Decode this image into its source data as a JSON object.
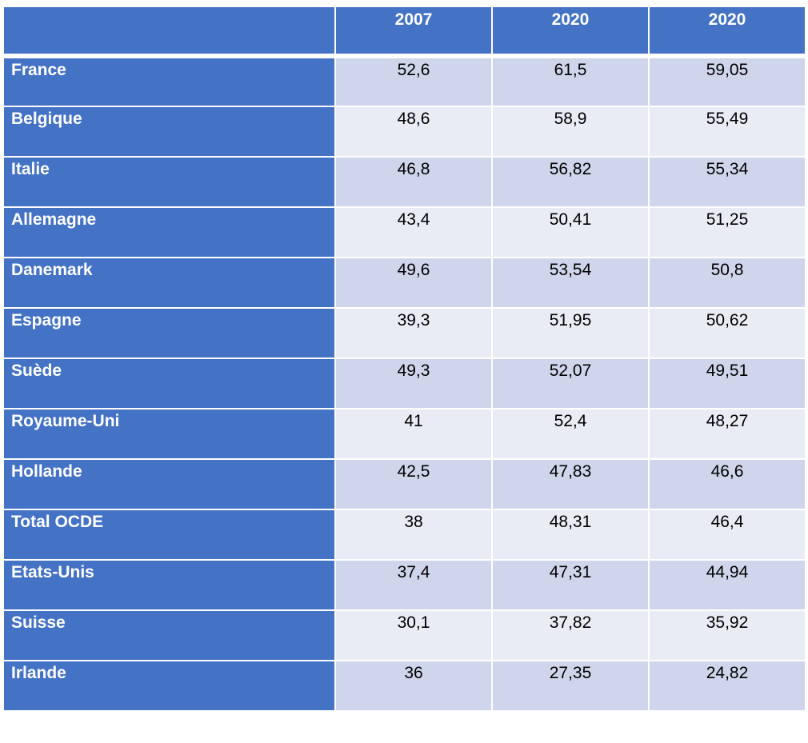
{
  "table": {
    "headers": [
      "",
      "2007",
      "2020",
      "2020"
    ],
    "rows": [
      {
        "label": "France",
        "values": [
          "52,6",
          "61,5",
          "59,05"
        ]
      },
      {
        "label": "Belgique",
        "values": [
          "48,6",
          "58,9",
          "55,49"
        ]
      },
      {
        "label": "Italie",
        "values": [
          "46,8",
          "56,82",
          "55,34"
        ]
      },
      {
        "label": "Allemagne",
        "values": [
          "43,4",
          "50,41",
          "51,25"
        ]
      },
      {
        "label": "Danemark",
        "values": [
          "49,6",
          "53,54",
          "50,8"
        ]
      },
      {
        "label": "Espagne",
        "values": [
          "39,3",
          "51,95",
          "50,62"
        ]
      },
      {
        "label": "Suède",
        "values": [
          "49,3",
          "52,07",
          "49,51"
        ]
      },
      {
        "label": "Royaume-Uni",
        "values": [
          "41",
          "52,4",
          "48,27"
        ]
      },
      {
        "label": "Hollande",
        "values": [
          "42,5",
          "47,83",
          "46,6"
        ]
      },
      {
        "label": "Total OCDE",
        "values": [
          "38",
          "48,31",
          "46,4"
        ]
      },
      {
        "label": "Etats-Unis",
        "values": [
          "37,4",
          "47,31",
          "44,94"
        ]
      },
      {
        "label": "Suisse",
        "values": [
          "30,1",
          "37,82",
          "35,92"
        ]
      },
      {
        "label": "Irlande",
        "values": [
          "36",
          "27,35",
          "24,82"
        ]
      }
    ]
  },
  "colors": {
    "header_bg": "#4472c4",
    "row_odd_bg": "#cfd5ea",
    "row_even_bg": "#e9ebf5"
  }
}
